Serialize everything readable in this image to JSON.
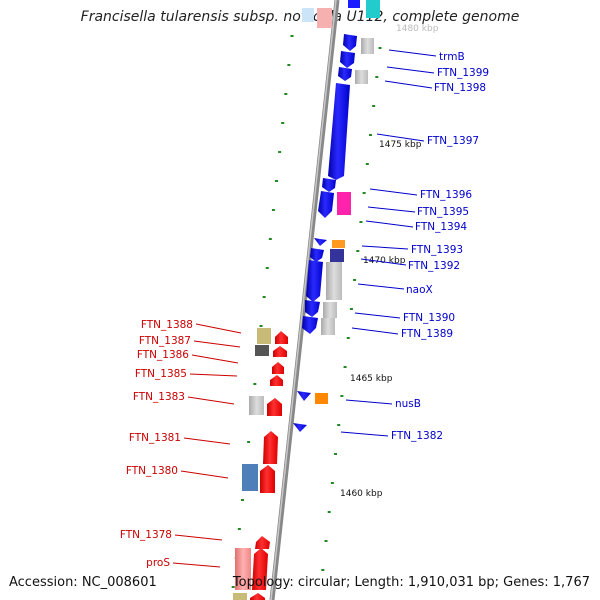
{
  "title": "Francisella tularensis subsp. novicida U112, complete genome",
  "footer": {
    "accession": "Accession: NC_008601",
    "summary": "Topology: circular; Length: 1,910,031 bp; Genes: 1,767"
  },
  "scale_marks": [
    "1480 kbp",
    "1475 kbp",
    "1470 kbp",
    "1465 kbp",
    "1460 kbp"
  ],
  "colors": {
    "reverse_strand": "#ff0000",
    "forward_strand": "#0000ff",
    "axis": "#888888",
    "ticks": "#228822"
  },
  "blue_labels": [
    "trmB",
    "FTN_1399",
    "FTN_1398",
    "FTN_1397",
    "FTN_1396",
    "FTN_1395",
    "FTN_1394",
    "FTN_1393",
    "FTN_1392",
    "naoX",
    "FTN_1390",
    "FTN_1389",
    "nusB",
    "FTN_1382"
  ],
  "red_labels": [
    "FTN_1388",
    "FTN_1387",
    "FTN_1386",
    "FTN_1385",
    "FTN_1383",
    "FTN_1381",
    "FTN_1380",
    "FTN_1378",
    "proS"
  ]
}
